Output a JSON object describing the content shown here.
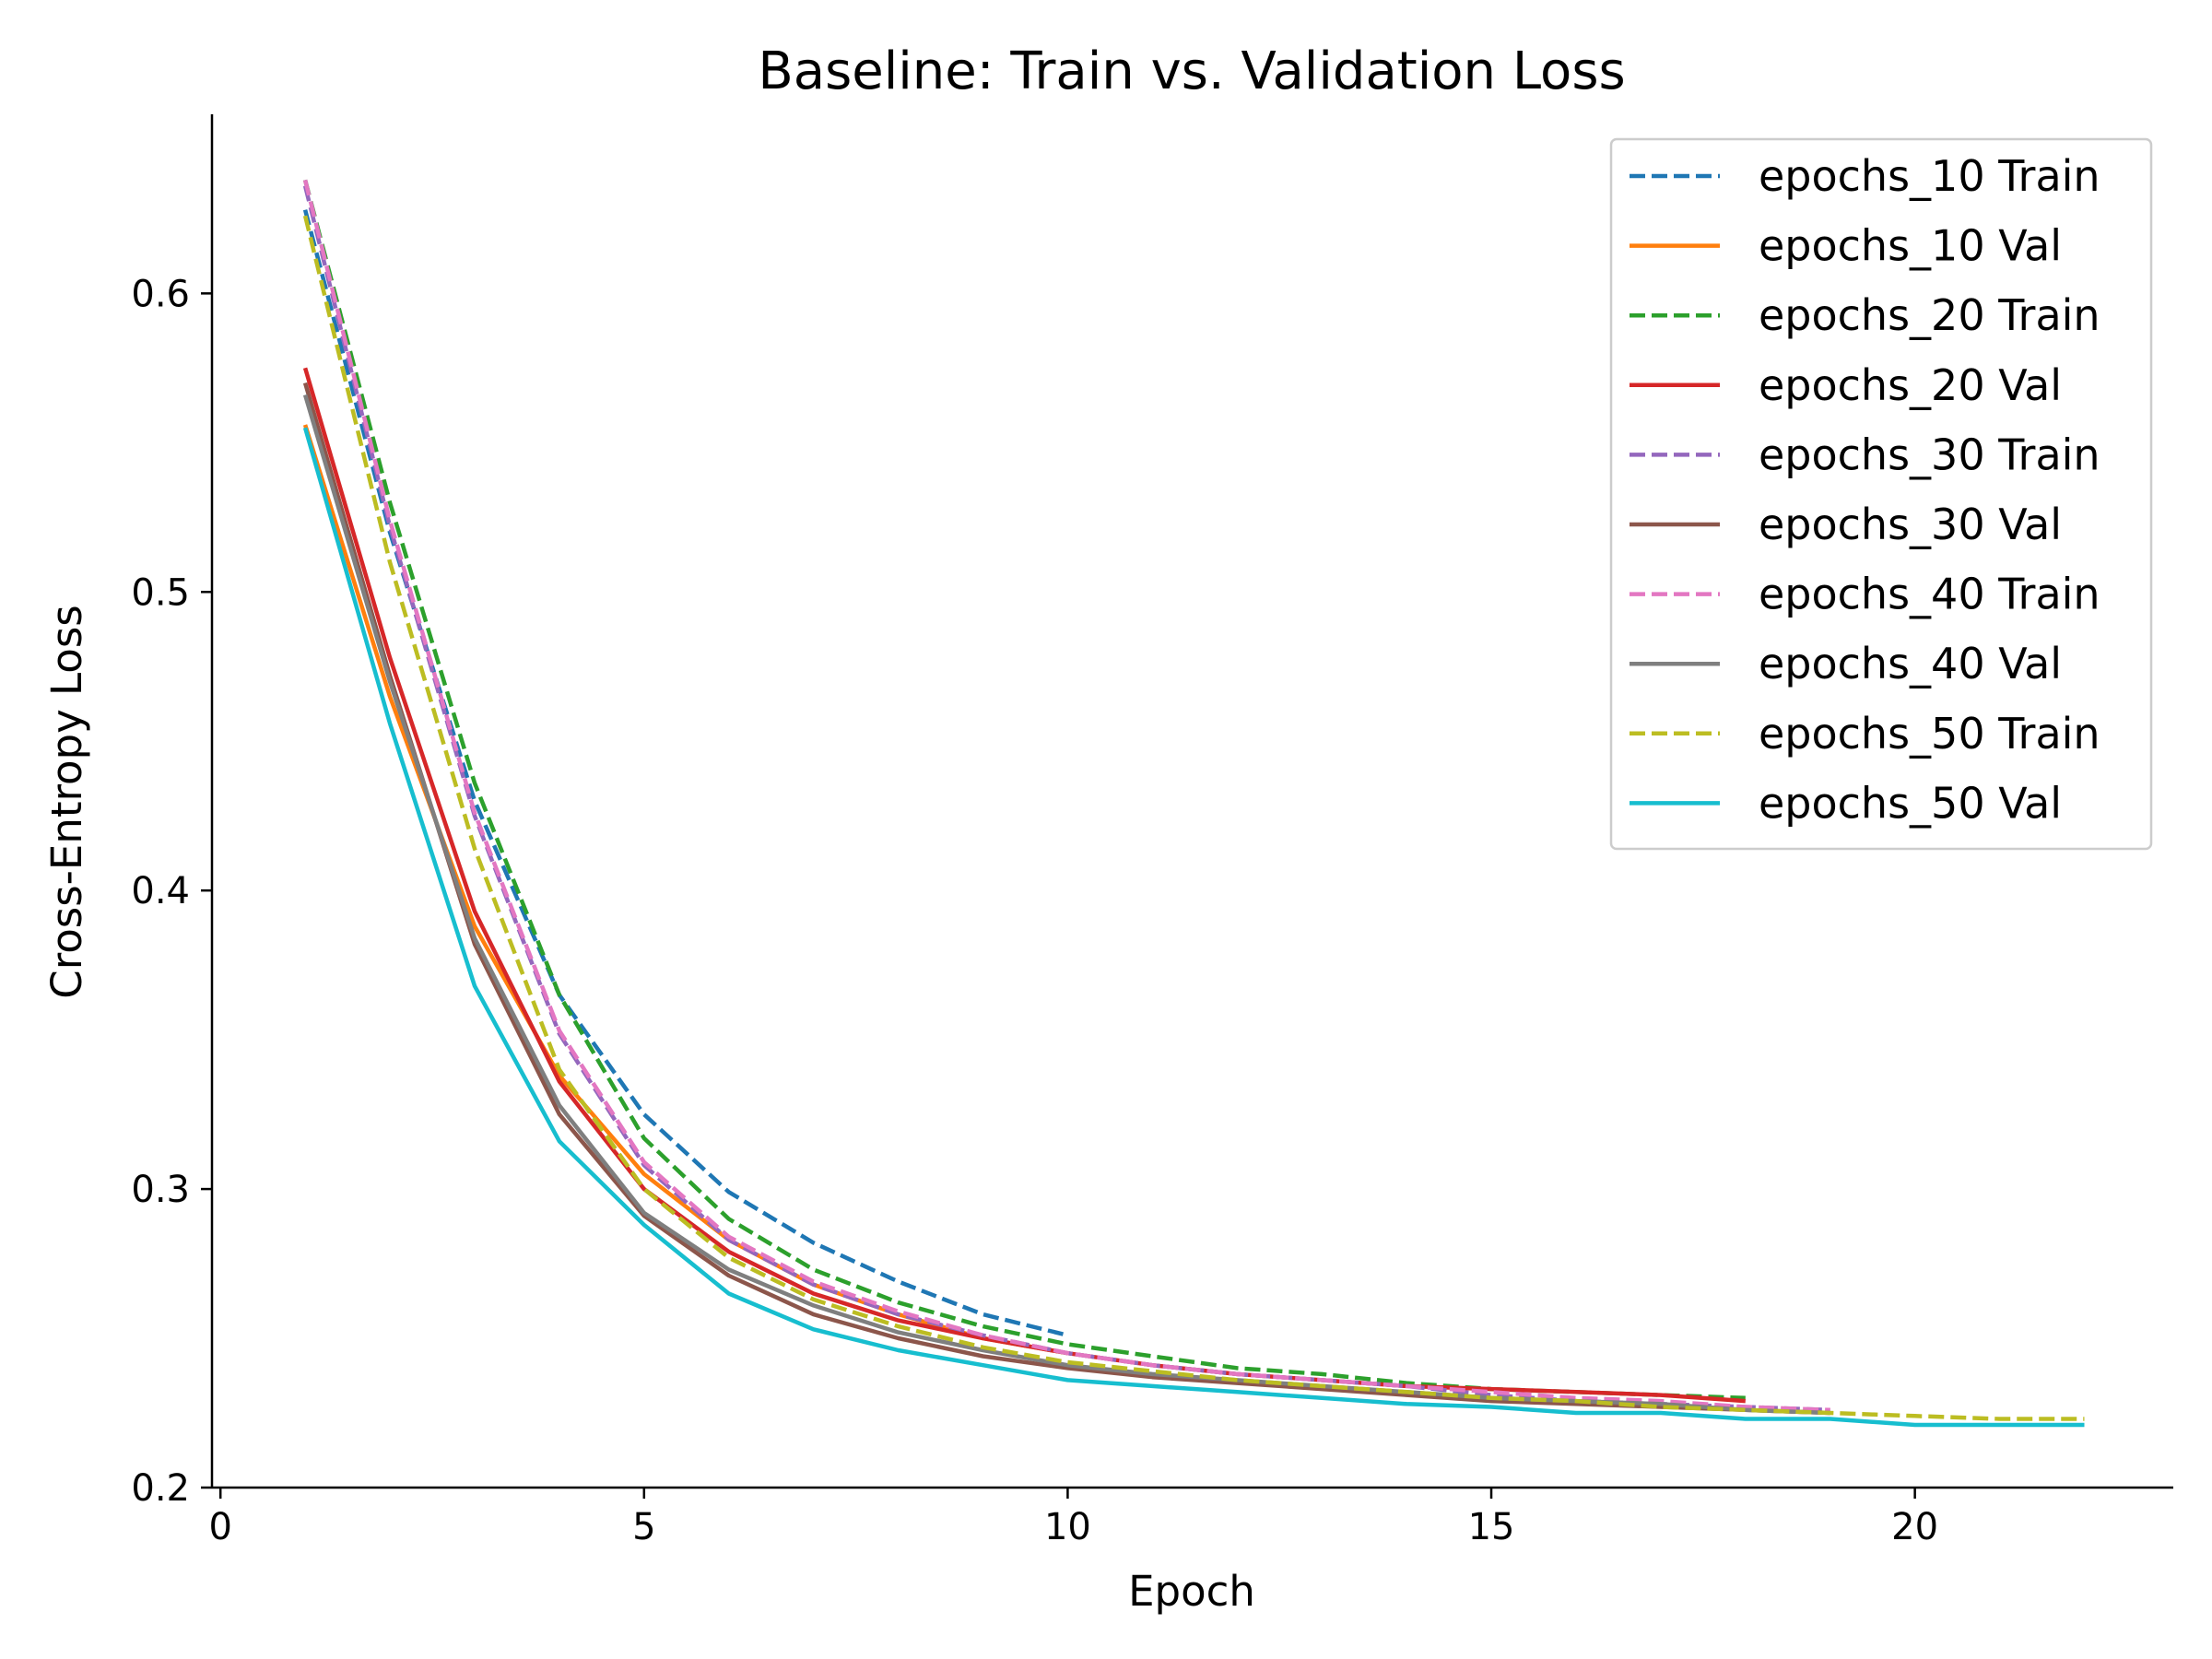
{
  "chart_data": {
    "type": "line",
    "title": "Baseline: Train vs. Validation Loss",
    "xlabel": "Epoch",
    "ylabel": "Cross-Entropy Loss",
    "xlim": [
      -0.1,
      23.05
    ],
    "ylim": [
      0.2,
      0.66
    ],
    "xticks": [
      0,
      5,
      10,
      15,
      20
    ],
    "yticks": [
      0.2,
      0.3,
      0.4,
      0.5,
      0.6
    ],
    "xtick_labels": [
      "0",
      "5",
      "10",
      "15",
      "20"
    ],
    "ytick_labels": [
      "0.2",
      "0.3",
      "0.4",
      "0.5",
      "0.6"
    ],
    "grid": false,
    "legend": "top-right",
    "series": [
      {
        "name": "epochs_10 Train",
        "color": "#1f77b4",
        "dash": true,
        "x": [
          1,
          2,
          3,
          4,
          5,
          6,
          7,
          8,
          9,
          10
        ],
        "y": [
          0.628,
          0.52,
          0.43,
          0.365,
          0.325,
          0.299,
          0.282,
          0.269,
          0.258,
          0.251
        ]
      },
      {
        "name": "epochs_10 Val",
        "color": "#ff7f0e",
        "dash": false,
        "x": [
          1,
          2,
          3,
          4,
          5,
          6,
          7,
          8,
          9,
          10
        ],
        "y": [
          0.556,
          0.465,
          0.388,
          0.338,
          0.305,
          0.283,
          0.268,
          0.258,
          0.25,
          0.245
        ]
      },
      {
        "name": "epochs_20 Train",
        "color": "#2ca02c",
        "dash": true,
        "x": [
          1,
          2,
          3,
          4,
          5,
          6,
          7,
          8,
          9,
          10,
          11,
          12,
          13,
          14,
          15,
          16,
          17,
          18
        ],
        "y": [
          0.638,
          0.53,
          0.436,
          0.365,
          0.317,
          0.29,
          0.273,
          0.262,
          0.254,
          0.248,
          0.244,
          0.24,
          0.238,
          0.235,
          0.233,
          0.232,
          0.231,
          0.23
        ]
      },
      {
        "name": "epochs_20 Val",
        "color": "#d62728",
        "dash": false,
        "x": [
          1,
          2,
          3,
          4,
          5,
          6,
          7,
          8,
          9,
          10,
          11,
          12,
          13,
          14,
          15,
          16,
          17,
          18
        ],
        "y": [
          0.575,
          0.478,
          0.393,
          0.336,
          0.3,
          0.279,
          0.265,
          0.256,
          0.25,
          0.245,
          0.241,
          0.238,
          0.236,
          0.234,
          0.233,
          0.232,
          0.231,
          0.229
        ]
      },
      {
        "name": "epochs_30 Train",
        "color": "#9467bd",
        "dash": true,
        "x": [
          1,
          2,
          3,
          4,
          5,
          6,
          7,
          8,
          9,
          10,
          11,
          12,
          13,
          14,
          15,
          16,
          17,
          18,
          19
        ],
        "y": [
          0.636,
          0.522,
          0.425,
          0.352,
          0.308,
          0.283,
          0.268,
          0.258,
          0.251,
          0.245,
          0.241,
          0.238,
          0.236,
          0.234,
          0.231,
          0.229,
          0.228,
          0.227,
          0.226
        ]
      },
      {
        "name": "epochs_30 Val",
        "color": "#8c564b",
        "dash": false,
        "x": [
          1,
          2,
          3,
          4,
          5,
          6,
          7,
          8,
          9,
          10,
          11,
          12,
          13,
          14,
          15,
          16,
          17,
          18,
          19
        ],
        "y": [
          0.57,
          0.472,
          0.382,
          0.325,
          0.291,
          0.271,
          0.258,
          0.25,
          0.244,
          0.24,
          0.237,
          0.235,
          0.233,
          0.231,
          0.229,
          0.228,
          0.227,
          0.226,
          0.225
        ]
      },
      {
        "name": "epochs_40 Train",
        "color": "#e377c2",
        "dash": true,
        "x": [
          1,
          2,
          3,
          4,
          5,
          6,
          7,
          8,
          9,
          10,
          11,
          12,
          13,
          14,
          15,
          16,
          17,
          18,
          19
        ],
        "y": [
          0.638,
          0.524,
          0.426,
          0.353,
          0.309,
          0.284,
          0.269,
          0.259,
          0.251,
          0.245,
          0.241,
          0.238,
          0.236,
          0.234,
          0.232,
          0.23,
          0.229,
          0.227,
          0.226
        ]
      },
      {
        "name": "epochs_40 Val",
        "color": "#7f7f7f",
        "dash": false,
        "x": [
          1,
          2,
          3,
          4,
          5,
          6,
          7,
          8,
          9,
          10,
          11,
          12,
          13,
          14,
          15,
          16,
          17,
          18,
          19
        ],
        "y": [
          0.566,
          0.47,
          0.384,
          0.328,
          0.292,
          0.273,
          0.261,
          0.252,
          0.246,
          0.241,
          0.238,
          0.236,
          0.234,
          0.232,
          0.23,
          0.229,
          0.228,
          0.226,
          0.225
        ]
      },
      {
        "name": "epochs_50 Train",
        "color": "#bcbd22",
        "dash": true,
        "x": [
          1,
          2,
          3,
          4,
          5,
          6,
          7,
          8,
          9,
          10,
          11,
          12,
          13,
          14,
          15,
          16,
          17,
          18,
          19,
          20,
          21,
          22
        ],
        "y": [
          0.626,
          0.51,
          0.414,
          0.34,
          0.3,
          0.277,
          0.263,
          0.254,
          0.247,
          0.242,
          0.239,
          0.236,
          0.234,
          0.232,
          0.23,
          0.229,
          0.227,
          0.226,
          0.225,
          0.224,
          0.223,
          0.223
        ]
      },
      {
        "name": "epochs_50 Val",
        "color": "#17becf",
        "dash": false,
        "x": [
          1,
          2,
          3,
          4,
          5,
          6,
          7,
          8,
          9,
          10,
          11,
          12,
          13,
          14,
          15,
          16,
          17,
          18,
          19,
          20,
          21,
          22
        ],
        "y": [
          0.555,
          0.456,
          0.368,
          0.316,
          0.288,
          0.265,
          0.253,
          0.246,
          0.241,
          0.236,
          0.234,
          0.232,
          0.23,
          0.228,
          0.227,
          0.225,
          0.225,
          0.223,
          0.223,
          0.221,
          0.221,
          0.221
        ]
      }
    ]
  }
}
